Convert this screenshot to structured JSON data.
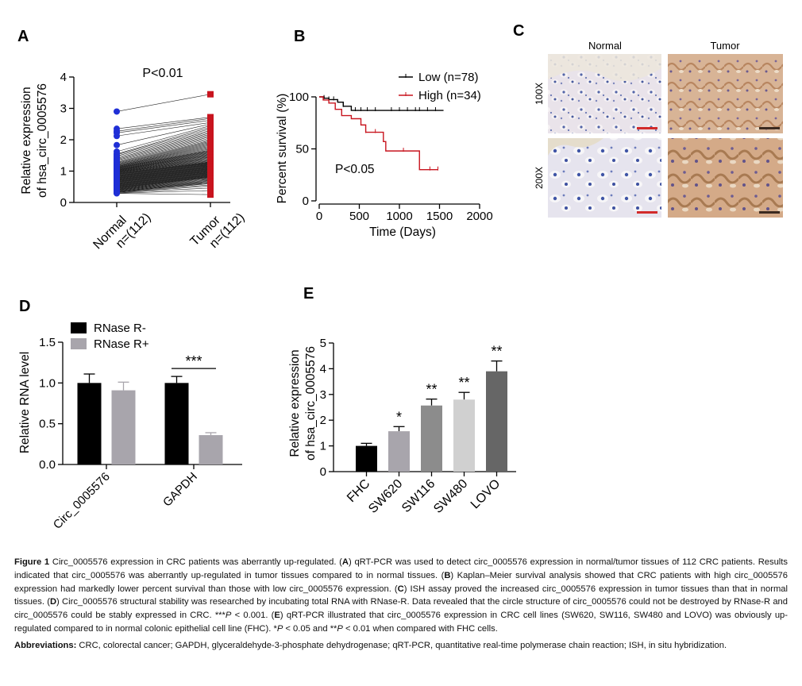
{
  "chart_data": [
    {
      "panel": "A",
      "type": "scatter",
      "pvalue": "P<0.01",
      "ylabel": "Relative expression\nof hsa_circ_0005576",
      "ylim": [
        0,
        4
      ],
      "yticks": [
        "0",
        "1",
        "2",
        "3",
        "4"
      ],
      "categories": [
        "Normal\nn=(112)",
        "Tumor\nn=(112)"
      ],
      "series": [
        {
          "colour": "#1f2fd6",
          "values": [
            2.9,
            2.35,
            2.27,
            2.22,
            2.12,
            1.83,
            1.62,
            1.55,
            1.52,
            1.48,
            1.44,
            1.4,
            1.37,
            1.34,
            1.31,
            1.28,
            1.26,
            1.24,
            1.22,
            1.2,
            1.18,
            1.17,
            1.15,
            1.14,
            1.13,
            1.12,
            1.11,
            1.1,
            1.09,
            1.08,
            1.07,
            1.06,
            1.05,
            1.04,
            1.04,
            1.03,
            1.02,
            1.01,
            1.0,
            1.0,
            0.99,
            0.98,
            0.97,
            0.96,
            0.96,
            0.95,
            0.94,
            0.93,
            0.92,
            0.91,
            0.9,
            0.89,
            0.88,
            0.87,
            0.86,
            0.85,
            0.84,
            0.83,
            0.82,
            0.81,
            0.8,
            0.79,
            0.78,
            0.77,
            0.76,
            0.75,
            0.74,
            0.73,
            0.72,
            0.71,
            0.7,
            0.69,
            0.68,
            0.67,
            0.66,
            0.65,
            0.64,
            0.63,
            0.62,
            0.61,
            0.6,
            0.59,
            0.58,
            0.57,
            0.56,
            0.55,
            0.54,
            0.53,
            0.52,
            0.51,
            0.5,
            0.49,
            0.48,
            0.47,
            0.46,
            0.45,
            0.44,
            0.43,
            0.42,
            0.41,
            0.4,
            0.39,
            0.38,
            0.37,
            0.36,
            0.35,
            0.34,
            0.33,
            0.32,
            0.31,
            0.3,
            0.29
          ]
        },
        {
          "colour": "#c8141e",
          "values": [
            3.45,
            2.72,
            2.68,
            2.62,
            2.55,
            2.5,
            2.45,
            2.4,
            2.35,
            2.3,
            2.26,
            2.22,
            2.18,
            2.14,
            2.1,
            2.06,
            2.02,
            1.98,
            1.95,
            1.92,
            1.89,
            1.86,
            1.83,
            1.8,
            1.77,
            1.74,
            1.71,
            1.68,
            1.66,
            1.64,
            1.62,
            1.6,
            1.58,
            1.56,
            1.54,
            1.52,
            1.5,
            1.48,
            1.46,
            1.44,
            1.42,
            1.4,
            1.38,
            1.36,
            1.34,
            1.32,
            1.3,
            1.29,
            1.28,
            1.27,
            1.26,
            1.25,
            1.24,
            1.23,
            1.22,
            1.21,
            1.2,
            1.19,
            1.18,
            1.17,
            1.16,
            1.15,
            1.14,
            1.13,
            1.12,
            1.11,
            1.1,
            1.09,
            1.08,
            1.07,
            1.06,
            1.05,
            1.04,
            1.03,
            1.02,
            1.01,
            1.0,
            0.99,
            0.98,
            0.97,
            0.96,
            0.95,
            0.94,
            0.93,
            0.92,
            0.91,
            0.9,
            0.89,
            0.88,
            0.87,
            0.86,
            0.85,
            0.84,
            0.83,
            0.82,
            0.81,
            0.8,
            0.78,
            0.76,
            0.74,
            0.72,
            0.7,
            0.68,
            0.66,
            0.64,
            0.62,
            0.6,
            0.56,
            0.52,
            0.46,
            0.38,
            0.25
          ]
        }
      ]
    },
    {
      "panel": "B",
      "type": "line",
      "xlabel": "Time (Days)",
      "ylabel": "Percent survival (%)",
      "xlim": [
        0,
        2000
      ],
      "ylim": [
        0,
        100
      ],
      "xticks": [
        "0",
        "500",
        "1000",
        "1500",
        "2000"
      ],
      "yticks": [
        "0",
        "50",
        "100"
      ],
      "legend_position": "top-right",
      "annotation": "P<0.05",
      "series": [
        {
          "name": "Low (n=78)",
          "colour": "#000000",
          "x": [
            0,
            60,
            120,
            230,
            300,
            400,
            1550
          ],
          "y": [
            100,
            98.7,
            97.4,
            94.9,
            91,
            87,
            87
          ],
          "censor_x": [
            60,
            120,
            180,
            300,
            450,
            520,
            600,
            700,
            900,
            1000,
            1100,
            1200,
            1250,
            1350,
            1450
          ],
          "censor_y": [
            98.7,
            97.4,
            97.4,
            91,
            87,
            87,
            87,
            87,
            87,
            87,
            87,
            87,
            87,
            87,
            87
          ]
        },
        {
          "name": "High (n=34)",
          "colour": "#c8141e",
          "x": [
            0,
            50,
            120,
            200,
            280,
            400,
            520,
            580,
            780,
            800,
            830,
            1250,
            1480
          ],
          "y": [
            100,
            97,
            94,
            88,
            82,
            79,
            73,
            66,
            66,
            57,
            48,
            30,
            30
          ],
          "censor_x": [
            580,
            700,
            1050,
            1380,
            1480
          ],
          "censor_y": [
            66,
            66,
            48,
            30,
            30
          ]
        }
      ]
    },
    {
      "panel": "D",
      "type": "bar",
      "ylabel": "Relative RNA level",
      "ylim": [
        0,
        1.5
      ],
      "yticks": [
        "0.0",
        "0.5",
        "1.0",
        "1.5"
      ],
      "categories": [
        "Circ_0005576",
        "GAPDH"
      ],
      "legend_position": "top-left",
      "series": [
        {
          "name": "RNase R-",
          "colour": "#000000",
          "values": [
            1.0,
            1.0
          ],
          "errors": [
            0.11,
            0.08
          ]
        },
        {
          "name": "RNase R+",
          "colour": "#a8a5ac",
          "values": [
            0.91,
            0.36
          ],
          "errors": [
            0.1,
            0.03
          ]
        }
      ],
      "significance": [
        {
          "category": "GAPDH",
          "label": "***"
        }
      ]
    },
    {
      "panel": "E",
      "type": "bar",
      "ylabel": "Relative expression\nof hsa_circ_0005576",
      "ylim": [
        0,
        5
      ],
      "yticks": [
        "0",
        "1",
        "2",
        "3",
        "4",
        "5"
      ],
      "categories": [
        "FHC",
        "SW620",
        "SW116",
        "SW480",
        "LOVO"
      ],
      "values": [
        1.0,
        1.57,
        2.57,
        2.8,
        3.9
      ],
      "errors": [
        0.1,
        0.18,
        0.25,
        0.28,
        0.4
      ],
      "colours": [
        "#000000",
        "#a8a5ac",
        "#8c8c8c",
        "#d0d0d0",
        "#666666"
      ],
      "significance": [
        "",
        "*",
        "**",
        "**",
        "**"
      ]
    }
  ],
  "panels": {
    "a": {
      "letter": "A"
    },
    "b": {
      "letter": "B"
    },
    "c": {
      "letter": "C",
      "col_labels": [
        "Normal",
        "Tumor"
      ],
      "row_labels": [
        "100X",
        "200X"
      ]
    },
    "d": {
      "letter": "D"
    },
    "e": {
      "letter": "E"
    }
  },
  "caption": {
    "fig_label": "Figure 1",
    "text_1": " Circ_0005576 expression in CRC patients was aberrantly up-regulated. (",
    "A": "A",
    "text_2": ") qRT-PCR was used to detect circ_0005576 expression in normal/tumor tissues of 112 CRC patients. Results indicated that circ_0005576 was aberrantly up-regulated in tumor tissues compared to in normal tissues. (",
    "B": "B",
    "text_3": ") Kaplan–Meier survival analysis showed that CRC patients with high circ_0005576 expression had markedly lower percent survival than those with low circ_0005576 expression. (",
    "C": "C",
    "text_4": ") ISH assay proved the increased circ_0005576 expression in tumor tissues than that in normal tissues. (",
    "D": "D",
    "text_5": ") Circ_0005576 structural stability was researched by incubating total RNA with RNase-R. Data revealed that the circle structure of circ_0005576 could not be destroyed by RNase-R and circ_0005576 could be stably expressed in CRC. ***",
    "P1": "P",
    "text_6": " < 0.001. (",
    "E": "E",
    "text_7": ") qRT-PCR illustrated that circ_0005576 expression in CRC cell lines (SW620, SW116, SW480 and LOVO) was obviously up-regulated compared to in normal colonic epithelial cell line (FHC). *",
    "P2": "P",
    "text_8": " < 0.05 and **",
    "P3": "P",
    "text_9": " < 0.01 when compared with FHC cells.",
    "abbr_label": "Abbreviations:",
    "abbr_text": " CRC, colorectal cancer; GAPDH, glyceraldehyde-3-phosphate dehydrogenase; qRT-PCR, quantitative real-time polymerase chain reaction; ISH, in situ hybridization."
  }
}
